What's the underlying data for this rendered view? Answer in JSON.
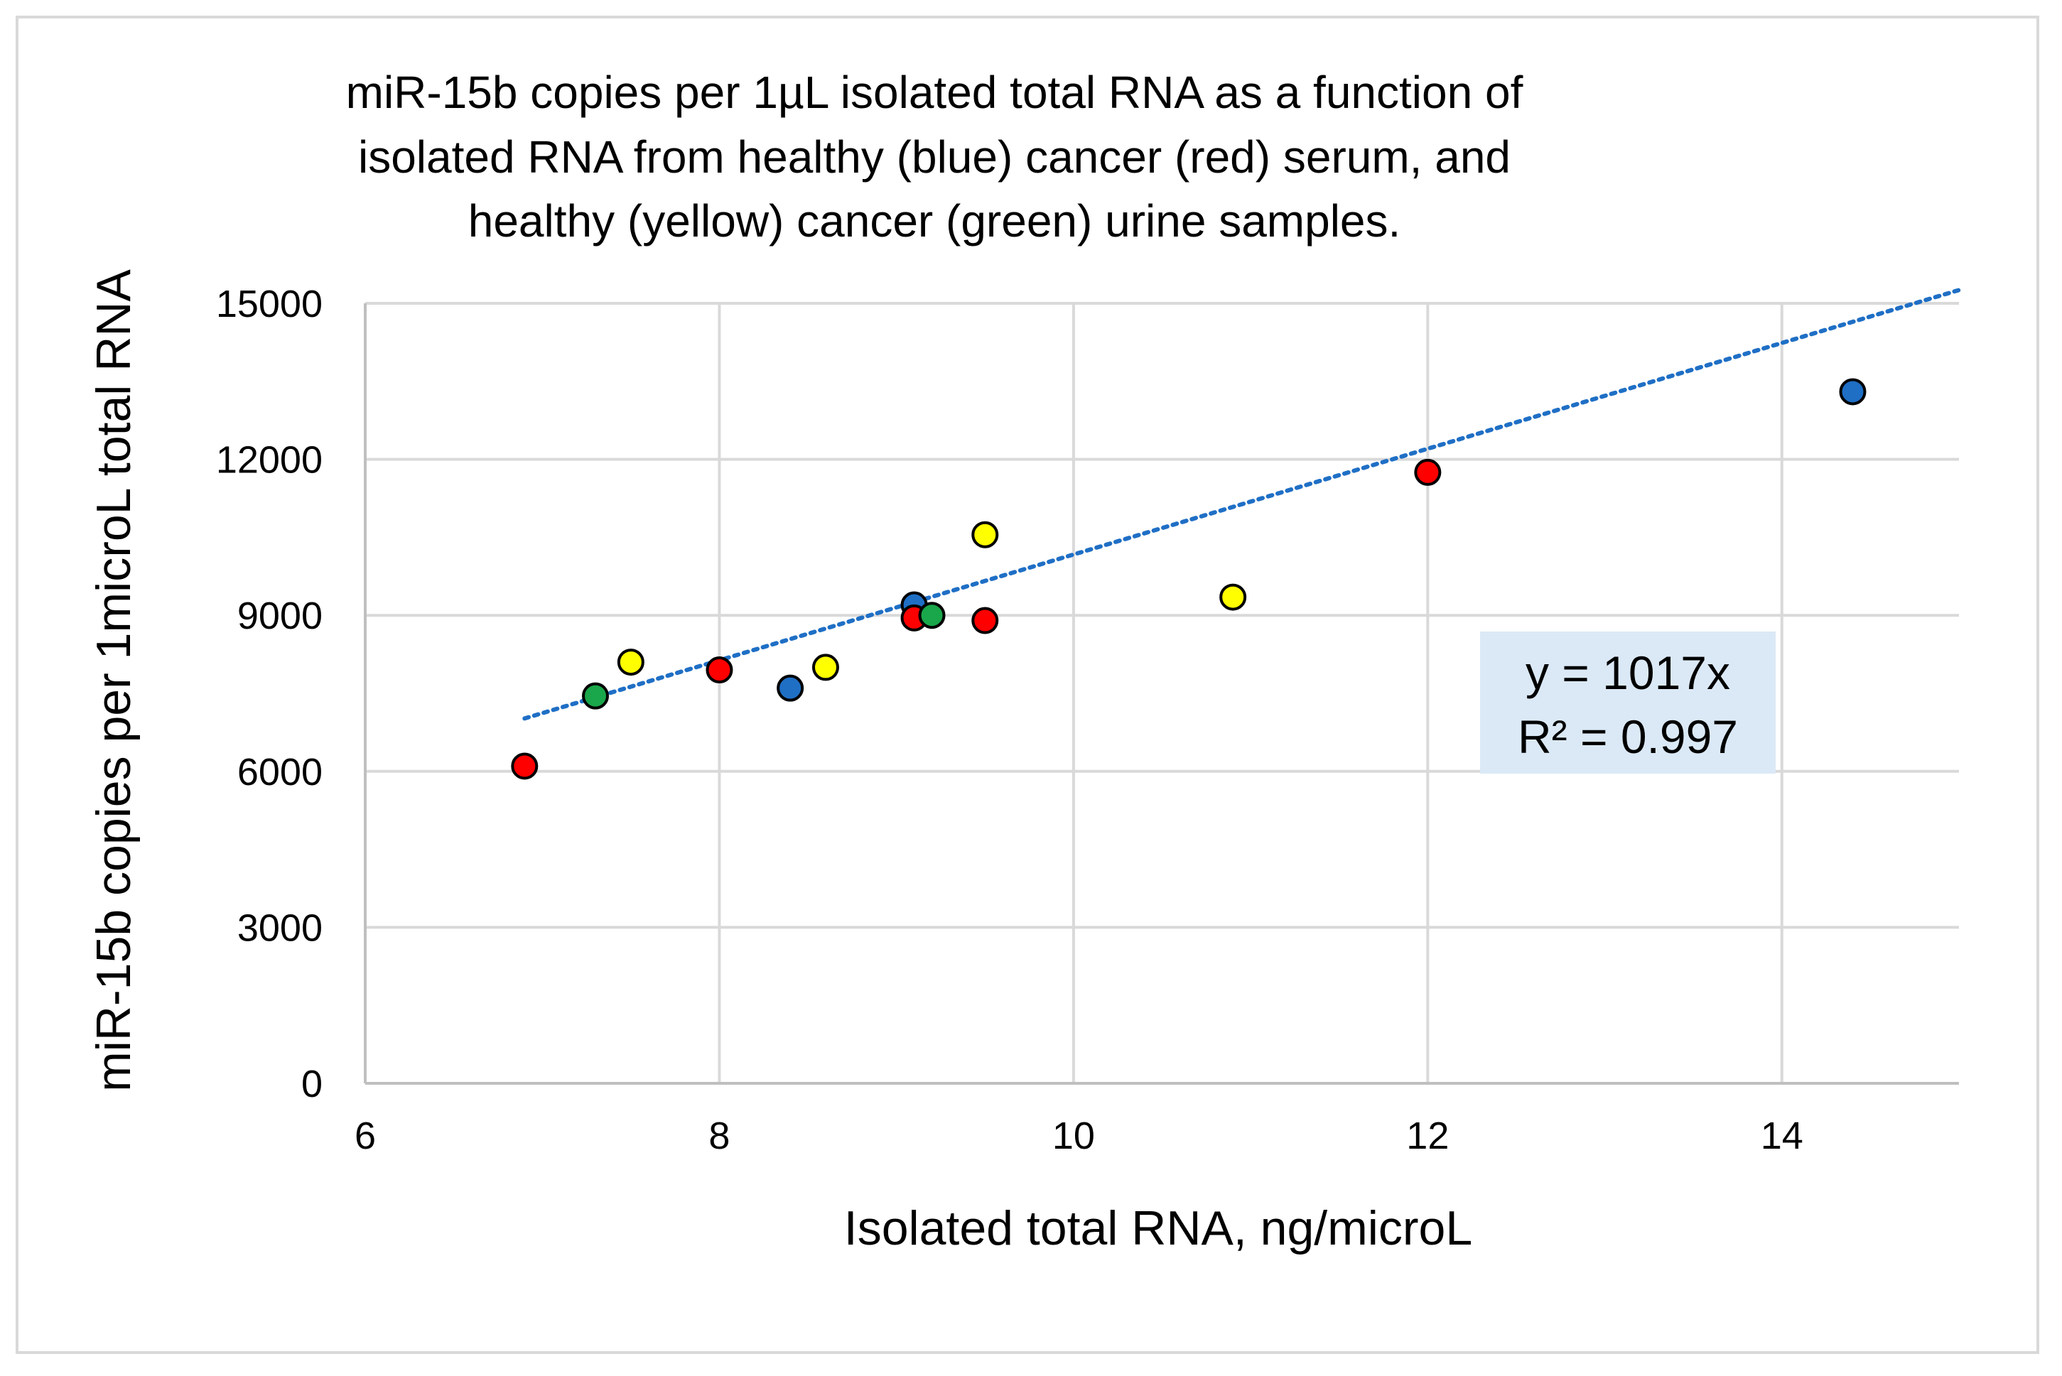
{
  "chart_data": {
    "type": "scatter",
    "title_lines": [
      "miR-15b copies per 1µL isolated total RNA as a function of",
      "isolated RNA from healthy (blue) cancer (red) serum, and",
      "healthy (yellow) cancer (green) urine samples."
    ],
    "xlabel": "Isolated total RNA, ng/microL",
    "ylabel": "miR-15b copies per 1microL total RNA",
    "xlim": [
      6,
      15
    ],
    "ylim": [
      0,
      15000
    ],
    "x_ticks": [
      6,
      8,
      10,
      12,
      14
    ],
    "x_tick_labels": [
      "6",
      "8",
      "10",
      "12",
      "14"
    ],
    "y_ticks": [
      0,
      3000,
      6000,
      9000,
      12000,
      15000
    ],
    "y_tick_labels": [
      "0",
      "3000",
      "6000",
      "9000",
      "12000",
      "15000"
    ],
    "grid": true,
    "series": [
      {
        "name": "healthy serum",
        "color": "#1f6fc5",
        "x": [
          8.4,
          9.1,
          14.4
        ],
        "y": [
          7600,
          9200,
          13300
        ]
      },
      {
        "name": "cancer serum",
        "color": "#ff0000",
        "x": [
          6.9,
          8.0,
          9.1,
          9.5,
          12.0
        ],
        "y": [
          6100,
          7950,
          8950,
          8900,
          11750
        ]
      },
      {
        "name": "healthy urine",
        "color": "#ffff00",
        "x": [
          7.5,
          8.6,
          9.5,
          10.9
        ],
        "y": [
          8100,
          8000,
          10550,
          9350
        ]
      },
      {
        "name": "cancer urine",
        "color": "#1aa64a",
        "x": [
          7.3,
          9.2
        ],
        "y": [
          7450,
          9000
        ]
      }
    ],
    "trendline": {
      "color": "#1f6fc5",
      "slope": 1017,
      "intercept": 0,
      "x_range": [
        6.9,
        15.0
      ],
      "equation": "y = 1017x",
      "r_squared": "R² = 0.997",
      "box_color": "#dbe9f6"
    }
  }
}
